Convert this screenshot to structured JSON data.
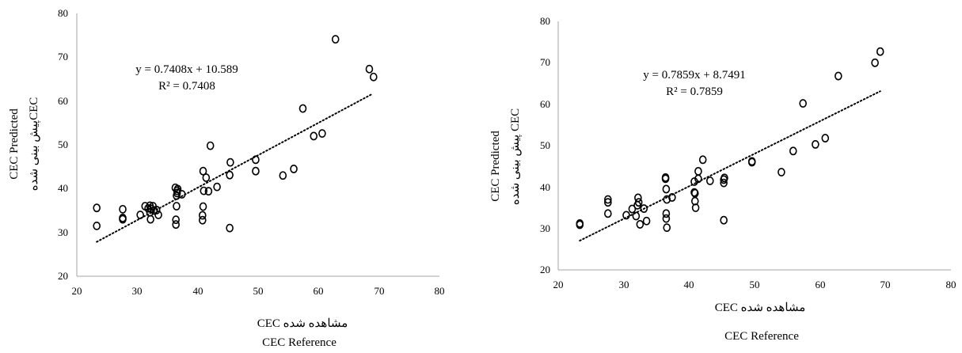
{
  "chart_data": [
    {
      "type": "scatter",
      "xlabel_persian": "CEC مشاهده شده",
      "xlabel": "CEC Reference",
      "ylabel": "CEC Predicted",
      "ylabel_persian": "پیش بینی شدهCEC",
      "xlim": [
        20,
        80
      ],
      "ylim": [
        20,
        80
      ],
      "xticks": [
        "20",
        "30",
        "40",
        "50",
        "60",
        "70",
        "80"
      ],
      "yticks": [
        "20",
        "30",
        "40",
        "50",
        "60",
        "70",
        "80"
      ],
      "equation": "y = 0.7408x + 10.589",
      "r2": "R² = 0.7408",
      "trendline": {
        "slope": 0.7408,
        "intercept": 10.589,
        "x_range": [
          23.3,
          69
        ]
      },
      "points": {
        "x": [
          23.3,
          23.3,
          27.6,
          27.6,
          27.6,
          30.5,
          31.3,
          31.8,
          32.1,
          32.1,
          32.2,
          32.3,
          32.6,
          32.8,
          33.2,
          33.5,
          36.3,
          36.4,
          36.4,
          36.5,
          36.5,
          36.6,
          36.6,
          36.7,
          37.4,
          40.8,
          40.8,
          40.9,
          40.9,
          41.0,
          41.4,
          41.8,
          42.1,
          43.2,
          45.3,
          45.3,
          45.4,
          49.6,
          49.6,
          54.1,
          55.9,
          57.4,
          59.2,
          60.6,
          62.8,
          68.4,
          69.1
        ],
        "y": [
          35.6,
          31.5,
          35.3,
          33.3,
          33.0,
          34.0,
          36.0,
          35.5,
          36.1,
          34.6,
          33.0,
          35.4,
          36.0,
          35.0,
          35.1,
          34.0,
          40.2,
          31.8,
          32.9,
          36.0,
          38.4,
          39.0,
          39.5,
          39.9,
          38.7,
          32.8,
          33.9,
          35.9,
          44.0,
          39.5,
          42.5,
          39.4,
          49.8,
          40.4,
          31.0,
          43.1,
          46.0,
          44.0,
          46.6,
          43.0,
          44.5,
          58.3,
          52.0,
          52.6,
          74.1,
          67.3,
          65.5
        ]
      }
    },
    {
      "type": "scatter",
      "xlabel_persian": "CEC مشاهده شده",
      "xlabel": "CEC Reference",
      "ylabel": "CEC Predicted",
      "ylabel_persian": "پیش بینی شده CEC",
      "xlim": [
        20,
        80
      ],
      "ylim": [
        20,
        80
      ],
      "xticks": [
        "20",
        "30",
        "40",
        "50",
        "60",
        "70",
        "80"
      ],
      "yticks": [
        "20",
        "30",
        "40",
        "50",
        "60",
        "70",
        "80"
      ],
      "equation": "y = 0.7859x + 8.7491",
      "r2": "R² = 0.7859",
      "trendline": {
        "slope": 0.7859,
        "intercept": 8.7491,
        "x_range": [
          23.3,
          69.2
        ]
      },
      "points": {
        "x": [
          23.3,
          23.3,
          27.6,
          27.6,
          27.6,
          30.4,
          31.3,
          31.9,
          32.1,
          32.3,
          32.2,
          32.5,
          33.1,
          33.5,
          36.4,
          36.4,
          36.5,
          36.5,
          36.5,
          36.6,
          36.6,
          37.4,
          40.8,
          40.8,
          40.9,
          40.9,
          41.0,
          41.4,
          41.4,
          42.1,
          43.2,
          45.3,
          45.3,
          45.3,
          45.4,
          49.6,
          49.6,
          54.1,
          55.9,
          57.4,
          59.3,
          60.8,
          62.8,
          68.4,
          69.2
        ],
        "y": [
          31.2,
          30.9,
          37.0,
          36.3,
          33.6,
          33.2,
          34.7,
          33.0,
          35.6,
          36.3,
          37.4,
          31.0,
          34.8,
          31.8,
          42.3,
          42.0,
          39.5,
          33.6,
          32.4,
          30.2,
          37.0,
          37.5,
          41.3,
          38.7,
          38.5,
          36.6,
          35.0,
          42.0,
          43.8,
          46.6,
          41.5,
          32.0,
          41.0,
          41.8,
          42.2,
          46.2,
          46.0,
          43.6,
          48.7,
          60.2,
          50.3,
          51.8,
          66.8,
          70.0,
          72.7
        ]
      }
    }
  ]
}
